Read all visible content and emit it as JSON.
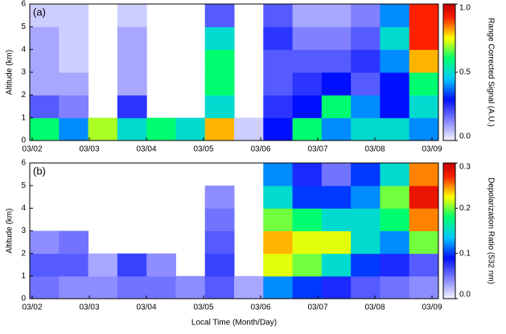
{
  "chart_data": [
    {
      "type": "heatmap",
      "panel_label": "(a)",
      "ylabel": "Altitude (km)",
      "colorbar_label": "Range Corrected Signal (A.U.)",
      "xtick_labels": [
        "03/02",
        "03/03",
        "03/04",
        "03/05",
        "03/06",
        "03/07",
        "03/08",
        "03/09"
      ],
      "ylim": [
        0,
        6
      ],
      "yticks": [
        0,
        1,
        2,
        3,
        4,
        5,
        6
      ],
      "zlim": [
        0,
        1
      ],
      "zticks": [
        {
          "value": 0,
          "label": "0.0"
        },
        {
          "value": 0.5,
          "label": "0.5"
        },
        {
          "value": 1,
          "label": "1.0"
        }
      ],
      "z": [
        [
          0.6,
          0.4,
          0.7,
          0.5,
          0.6,
          0.5,
          0.8,
          0.05,
          0.3,
          0.6,
          0.4,
          0.5,
          0.5,
          0.4
        ],
        [
          0.2,
          0.15,
          null,
          0.25,
          null,
          null,
          0.5,
          null,
          0.25,
          0.3,
          0.6,
          0.4,
          0.3,
          0.5
        ],
        [
          0.1,
          0.1,
          null,
          0.1,
          null,
          null,
          0.6,
          null,
          0.2,
          0.25,
          0.3,
          0.2,
          0.3,
          0.6
        ],
        [
          0.1,
          0.05,
          null,
          0.1,
          null,
          null,
          0.6,
          null,
          0.2,
          0.2,
          0.2,
          0.25,
          0.4,
          0.8
        ],
        [
          0.1,
          0.05,
          null,
          0.1,
          null,
          null,
          0.5,
          null,
          0.25,
          0.15,
          0.15,
          0.2,
          0.5,
          0.9
        ],
        [
          0.05,
          0.05,
          null,
          0.05,
          null,
          null,
          0.2,
          null,
          0.2,
          0.1,
          0.1,
          0.15,
          0.4,
          0.9
        ]
      ]
    },
    {
      "type": "heatmap",
      "panel_label": "(b)",
      "ylabel": "Altitude (km)",
      "colorbar_label": "Depolarization Ratio (532 nm)",
      "xlabel": "Local Time (Month/Day)",
      "xtick_labels": [
        "03/02",
        "03/03",
        "03/04",
        "03/05",
        "03/06",
        "03/07",
        "03/08",
        "03/09"
      ],
      "ylim": [
        0,
        6
      ],
      "yticks": [
        0,
        1,
        2,
        3,
        4,
        5,
        6
      ],
      "zlim": [
        0,
        0.3
      ],
      "zticks": [
        {
          "value": 0,
          "label": "0.0"
        },
        0.1,
        0.2,
        0.3
      ],
      "z": [
        [
          0.05,
          0.04,
          0.04,
          0.05,
          0.05,
          0.04,
          0.06,
          0.03,
          0.12,
          0.1,
          0.08,
          0.06,
          0.05,
          0.04
        ],
        [
          0.06,
          0.06,
          0.03,
          0.07,
          0.04,
          null,
          0.07,
          null,
          0.22,
          0.2,
          0.15,
          0.1,
          0.08,
          0.06
        ],
        [
          0.04,
          0.05,
          null,
          null,
          null,
          null,
          0.06,
          null,
          0.24,
          0.22,
          0.22,
          0.15,
          0.12,
          0.2
        ],
        [
          null,
          null,
          null,
          null,
          null,
          null,
          0.05,
          null,
          0.2,
          0.18,
          0.15,
          0.15,
          0.18,
          0.25
        ],
        [
          null,
          null,
          null,
          null,
          null,
          null,
          0.04,
          null,
          0.15,
          0.1,
          0.1,
          0.12,
          0.2,
          0.28
        ],
        [
          null,
          null,
          null,
          null,
          null,
          null,
          null,
          null,
          0.12,
          0.08,
          0.05,
          0.1,
          0.15,
          0.25
        ]
      ]
    }
  ]
}
